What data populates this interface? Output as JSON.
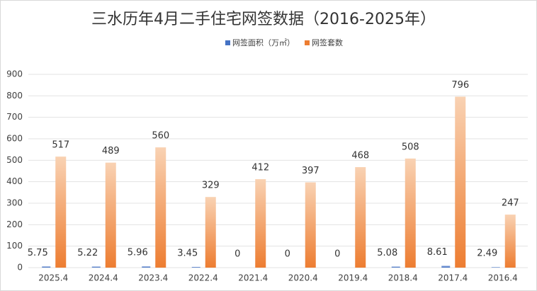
{
  "chart_data": {
    "type": "bar",
    "title": "三水历年4月二手住宅网签数据（2016-2025年）",
    "categories": [
      "2025.4",
      "2024.4",
      "2023.4",
      "2022.4",
      "2021.4",
      "2020.4",
      "2019.4",
      "2018.4",
      "2017.4",
      "2016.4"
    ],
    "series": [
      {
        "name": "网签面积（万㎡）",
        "color": "#4472c4",
        "values": [
          5.75,
          5.22,
          5.96,
          3.45,
          0,
          0,
          0,
          5.08,
          8.61,
          2.49
        ]
      },
      {
        "name": "网签套数",
        "color": "#ed7d31",
        "values": [
          517,
          489,
          560,
          329,
          412,
          397,
          468,
          508,
          796,
          247
        ]
      }
    ],
    "ylim": [
      0,
      900
    ],
    "yticks": [
      0,
      100,
      200,
      300,
      400,
      500,
      600,
      700,
      800,
      900
    ],
    "grid": true,
    "legend": "top"
  }
}
